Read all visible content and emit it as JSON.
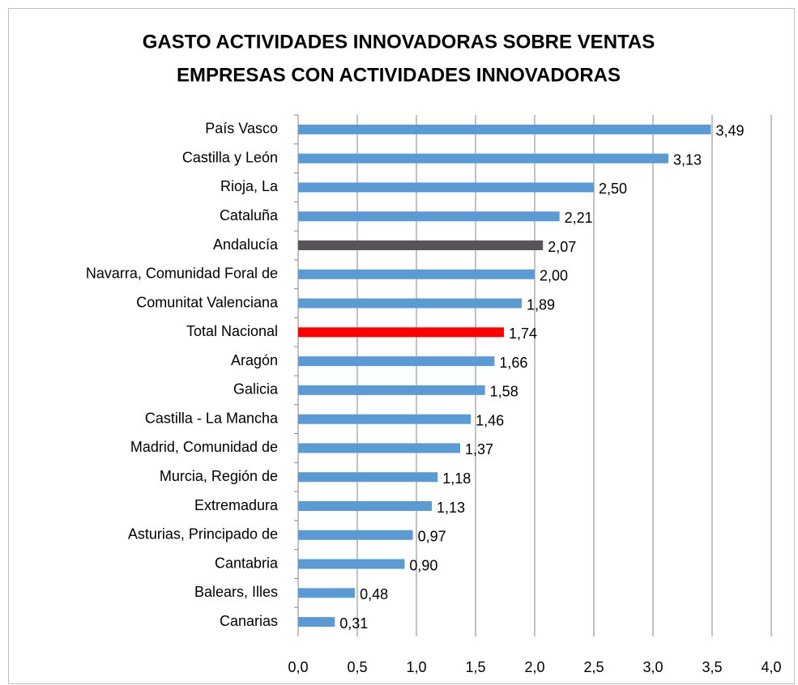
{
  "chart_data": {
    "type": "hbar",
    "title": [
      "GASTO ACTIVIDADES INNOVADORAS SOBRE VENTAS",
      "EMPRESAS CON ACTIVIDADES INNOVADORAS"
    ],
    "categories": [
      "País Vasco",
      "Castilla y León",
      "Rioja, La",
      "Cataluña",
      "Andalucía",
      "Navarra, Comunidad Foral de",
      "Comunitat Valenciana",
      "Total Nacional",
      "Aragón",
      "Galicia",
      "Castilla - La Mancha",
      "Madrid, Comunidad de",
      "Murcia, Región de",
      "Extremadura",
      "Asturias, Principado de",
      "Cantabria",
      "Balears, Illes",
      "Canarias"
    ],
    "values": [
      3.49,
      3.13,
      2.5,
      2.21,
      2.07,
      2.0,
      1.89,
      1.74,
      1.66,
      1.58,
      1.46,
      1.37,
      1.18,
      1.13,
      0.97,
      0.9,
      0.48,
      0.31
    ],
    "value_labels": [
      "3,49",
      "3,13",
      "2,50",
      "2,21",
      "2,07",
      "2,00",
      "1,89",
      "1,74",
      "1,66",
      "1,58",
      "1,46",
      "1,37",
      "1,18",
      "1,13",
      "0,97",
      "0,90",
      "0,48",
      "0,31"
    ],
    "colors": [
      "#5b9bd5",
      "#5b9bd5",
      "#5b9bd5",
      "#5b9bd5",
      "#595457",
      "#5b9bd5",
      "#5b9bd5",
      "#ff0000",
      "#5b9bd5",
      "#5b9bd5",
      "#5b9bd5",
      "#5b9bd5",
      "#5b9bd5",
      "#5b9bd5",
      "#5b9bd5",
      "#5b9bd5",
      "#5b9bd5",
      "#5b9bd5"
    ],
    "xlim": [
      0,
      4
    ],
    "xticks": [
      {
        "value": 0,
        "label": "0,0"
      },
      {
        "value": 0.5,
        "label": "0,5"
      },
      {
        "value": 1,
        "label": "1,0"
      },
      {
        "value": 1.5,
        "label": "1,5"
      },
      {
        "value": 2,
        "label": "2,0"
      },
      {
        "value": 2.5,
        "label": "2,5"
      },
      {
        "value": 3,
        "label": "3,0"
      },
      {
        "value": 3.5,
        "label": "3,5"
      },
      {
        "value": 4,
        "label": "4,0"
      }
    ],
    "grid": true
  }
}
